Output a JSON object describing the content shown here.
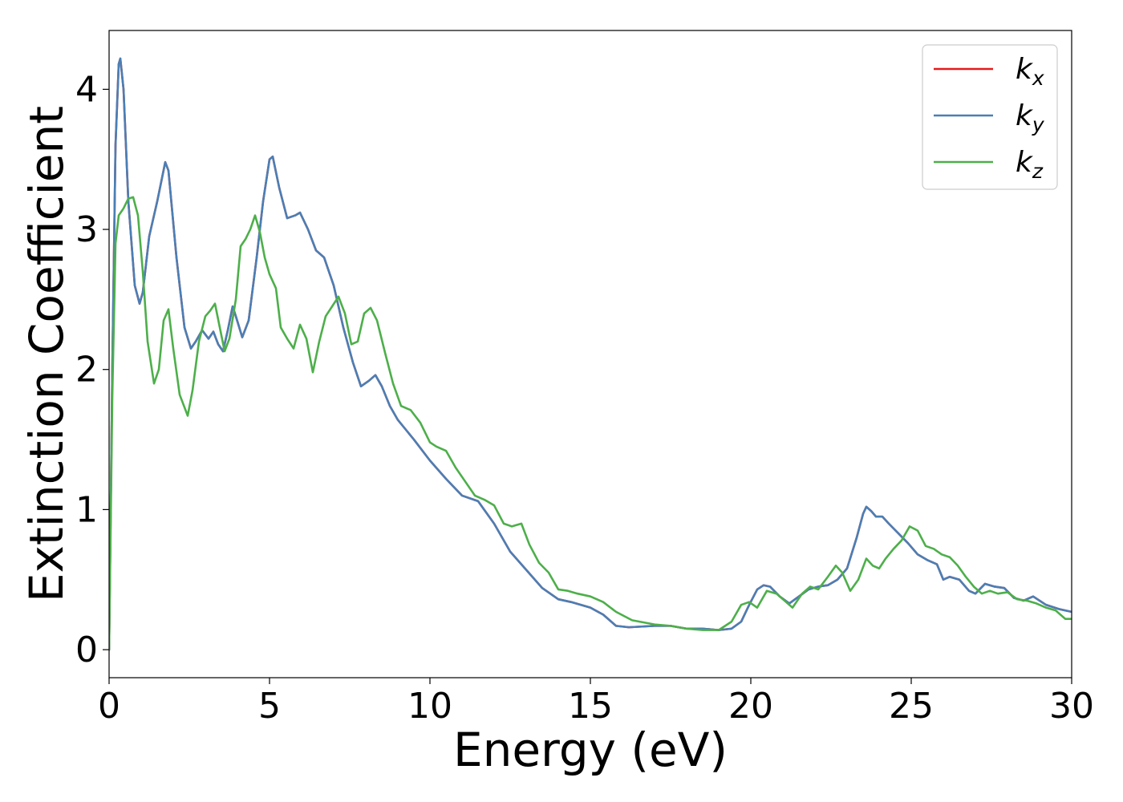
{
  "chart_data": {
    "type": "line",
    "xlabel": "Energy (eV)",
    "ylabel": "Extinction Coefficient",
    "xlim": [
      0,
      30
    ],
    "ylim": [
      -0.2,
      4.42
    ],
    "xticks": [
      "0",
      "5",
      "10",
      "15",
      "20",
      "25",
      "30"
    ],
    "yticks": [
      "0",
      "1",
      "2",
      "3",
      "4"
    ],
    "grid": false,
    "legend_position": "top-right",
    "series": [
      {
        "name": "k_x",
        "label_main": "k",
        "label_sub": "x",
        "color": "#e41a1c",
        "x": [
          0.0,
          0.1,
          0.2,
          0.3,
          0.35,
          0.45,
          0.6,
          0.8,
          0.95,
          1.05,
          1.25,
          1.5,
          1.75,
          1.85,
          2.1,
          2.35,
          2.55,
          2.7,
          2.9,
          3.1,
          3.25,
          3.4,
          3.55,
          3.7,
          3.85,
          3.95,
          4.15,
          4.35,
          4.6,
          4.8,
          5.0,
          5.1,
          5.3,
          5.55,
          5.8,
          5.95,
          6.2,
          6.45,
          6.7,
          7.0,
          7.3,
          7.6,
          7.85,
          8.1,
          8.3,
          8.5,
          8.75,
          9.0,
          9.5,
          10.0,
          10.5,
          11.0,
          11.5,
          12.0,
          12.5,
          13.0,
          13.5,
          14.0,
          14.4,
          14.7,
          15.0,
          15.4,
          15.8,
          16.2,
          17.0,
          17.5,
          18.0,
          18.5,
          19.0,
          19.4,
          19.7,
          19.95,
          20.2,
          20.4,
          20.6,
          20.9,
          21.2,
          21.5,
          21.8,
          22.1,
          22.4,
          22.7,
          23.0,
          23.3,
          23.5,
          23.6,
          23.75,
          23.9,
          24.1,
          24.3,
          24.6,
          24.9,
          25.2,
          25.5,
          25.8,
          26.0,
          26.2,
          26.5,
          26.8,
          27.0,
          27.3,
          27.6,
          27.9,
          28.2,
          28.5,
          28.8,
          29.2,
          29.6,
          30.0
        ],
        "y": [
          0.0,
          2.0,
          3.6,
          4.18,
          4.22,
          4.0,
          3.2,
          2.6,
          2.47,
          2.55,
          2.95,
          3.2,
          3.48,
          3.42,
          2.8,
          2.3,
          2.15,
          2.2,
          2.28,
          2.22,
          2.27,
          2.18,
          2.13,
          2.28,
          2.45,
          2.38,
          2.23,
          2.35,
          2.8,
          3.2,
          3.5,
          3.52,
          3.3,
          3.08,
          3.1,
          3.12,
          3.0,
          2.85,
          2.8,
          2.6,
          2.3,
          2.05,
          1.88,
          1.92,
          1.96,
          1.88,
          1.74,
          1.64,
          1.5,
          1.35,
          1.22,
          1.1,
          1.06,
          0.9,
          0.7,
          0.57,
          0.44,
          0.36,
          0.34,
          0.32,
          0.3,
          0.25,
          0.17,
          0.16,
          0.17,
          0.17,
          0.15,
          0.15,
          0.14,
          0.15,
          0.2,
          0.32,
          0.43,
          0.46,
          0.45,
          0.38,
          0.33,
          0.38,
          0.43,
          0.45,
          0.46,
          0.5,
          0.58,
          0.8,
          0.97,
          1.02,
          0.99,
          0.95,
          0.95,
          0.9,
          0.83,
          0.76,
          0.68,
          0.64,
          0.61,
          0.5,
          0.52,
          0.5,
          0.42,
          0.4,
          0.47,
          0.45,
          0.44,
          0.37,
          0.35,
          0.38,
          0.32,
          0.29,
          0.27
        ]
      },
      {
        "name": "k_y",
        "label_main": "k",
        "label_sub": "y",
        "color": "#4a7fb5",
        "x": [
          0.0,
          0.1,
          0.2,
          0.3,
          0.35,
          0.45,
          0.6,
          0.8,
          0.95,
          1.05,
          1.25,
          1.5,
          1.75,
          1.85,
          2.1,
          2.35,
          2.55,
          2.7,
          2.9,
          3.1,
          3.25,
          3.4,
          3.55,
          3.7,
          3.85,
          3.95,
          4.15,
          4.35,
          4.6,
          4.8,
          5.0,
          5.1,
          5.3,
          5.55,
          5.8,
          5.95,
          6.2,
          6.45,
          6.7,
          7.0,
          7.3,
          7.6,
          7.85,
          8.1,
          8.3,
          8.5,
          8.75,
          9.0,
          9.5,
          10.0,
          10.5,
          11.0,
          11.5,
          12.0,
          12.5,
          13.0,
          13.5,
          14.0,
          14.4,
          14.7,
          15.0,
          15.4,
          15.8,
          16.2,
          17.0,
          17.5,
          18.0,
          18.5,
          19.0,
          19.4,
          19.7,
          19.95,
          20.2,
          20.4,
          20.6,
          20.9,
          21.2,
          21.5,
          21.8,
          22.1,
          22.4,
          22.7,
          23.0,
          23.3,
          23.5,
          23.6,
          23.75,
          23.9,
          24.1,
          24.3,
          24.6,
          24.9,
          25.2,
          25.5,
          25.8,
          26.0,
          26.2,
          26.5,
          26.8,
          27.0,
          27.3,
          27.6,
          27.9,
          28.2,
          28.5,
          28.8,
          29.2,
          29.6,
          30.0
        ],
        "y": [
          0.0,
          2.0,
          3.6,
          4.18,
          4.22,
          4.0,
          3.2,
          2.6,
          2.47,
          2.55,
          2.95,
          3.2,
          3.48,
          3.42,
          2.8,
          2.3,
          2.15,
          2.2,
          2.28,
          2.22,
          2.27,
          2.18,
          2.13,
          2.28,
          2.45,
          2.38,
          2.23,
          2.35,
          2.8,
          3.2,
          3.5,
          3.52,
          3.3,
          3.08,
          3.1,
          3.12,
          3.0,
          2.85,
          2.8,
          2.6,
          2.3,
          2.05,
          1.88,
          1.92,
          1.96,
          1.88,
          1.74,
          1.64,
          1.5,
          1.35,
          1.22,
          1.1,
          1.06,
          0.9,
          0.7,
          0.57,
          0.44,
          0.36,
          0.34,
          0.32,
          0.3,
          0.25,
          0.17,
          0.16,
          0.17,
          0.17,
          0.15,
          0.15,
          0.14,
          0.15,
          0.2,
          0.32,
          0.43,
          0.46,
          0.45,
          0.38,
          0.33,
          0.38,
          0.43,
          0.45,
          0.46,
          0.5,
          0.58,
          0.8,
          0.97,
          1.02,
          0.99,
          0.95,
          0.95,
          0.9,
          0.83,
          0.76,
          0.68,
          0.64,
          0.61,
          0.5,
          0.52,
          0.5,
          0.42,
          0.4,
          0.47,
          0.45,
          0.44,
          0.37,
          0.35,
          0.38,
          0.32,
          0.29,
          0.27
        ]
      },
      {
        "name": "k_z",
        "label_main": "k",
        "label_sub": "z",
        "color": "#4daf4a",
        "x": [
          0.0,
          0.1,
          0.2,
          0.3,
          0.45,
          0.6,
          0.75,
          0.9,
          1.05,
          1.2,
          1.4,
          1.55,
          1.7,
          1.85,
          2.0,
          2.2,
          2.45,
          2.6,
          2.8,
          3.0,
          3.15,
          3.3,
          3.45,
          3.6,
          3.75,
          3.95,
          4.1,
          4.25,
          4.4,
          4.55,
          4.7,
          4.85,
          5.0,
          5.2,
          5.35,
          5.55,
          5.75,
          5.95,
          6.15,
          6.35,
          6.55,
          6.75,
          6.95,
          7.15,
          7.35,
          7.55,
          7.75,
          7.95,
          8.15,
          8.35,
          8.6,
          8.85,
          9.1,
          9.4,
          9.7,
          10.0,
          10.2,
          10.5,
          10.8,
          11.1,
          11.4,
          11.7,
          12.0,
          12.3,
          12.55,
          12.85,
          13.1,
          13.4,
          13.7,
          14.0,
          14.3,
          14.6,
          15.0,
          15.4,
          15.8,
          16.3,
          17.0,
          17.5,
          18.0,
          18.5,
          19.0,
          19.4,
          19.7,
          19.95,
          20.2,
          20.5,
          20.8,
          21.1,
          21.3,
          21.6,
          21.85,
          22.1,
          22.4,
          22.65,
          22.85,
          23.1,
          23.35,
          23.6,
          23.8,
          24.0,
          24.2,
          24.45,
          24.7,
          24.95,
          25.2,
          25.45,
          25.7,
          25.95,
          26.2,
          26.45,
          26.7,
          26.95,
          27.2,
          27.45,
          27.7,
          28.0,
          28.3,
          28.6,
          28.9,
          29.2,
          29.5,
          29.8,
          30.0
        ],
        "y": [
          0.0,
          1.8,
          2.9,
          3.1,
          3.15,
          3.22,
          3.23,
          3.1,
          2.7,
          2.2,
          1.9,
          2.0,
          2.35,
          2.43,
          2.15,
          1.82,
          1.67,
          1.85,
          2.2,
          2.38,
          2.42,
          2.47,
          2.3,
          2.13,
          2.22,
          2.5,
          2.88,
          2.93,
          3.0,
          3.1,
          2.98,
          2.8,
          2.68,
          2.58,
          2.3,
          2.22,
          2.15,
          2.32,
          2.22,
          1.98,
          2.2,
          2.38,
          2.45,
          2.52,
          2.4,
          2.18,
          2.2,
          2.4,
          2.44,
          2.35,
          2.12,
          1.9,
          1.74,
          1.71,
          1.62,
          1.48,
          1.45,
          1.42,
          1.3,
          1.2,
          1.1,
          1.07,
          1.03,
          0.9,
          0.88,
          0.9,
          0.75,
          0.62,
          0.55,
          0.43,
          0.42,
          0.4,
          0.38,
          0.34,
          0.27,
          0.21,
          0.18,
          0.17,
          0.15,
          0.14,
          0.14,
          0.2,
          0.32,
          0.34,
          0.3,
          0.42,
          0.4,
          0.34,
          0.3,
          0.4,
          0.45,
          0.43,
          0.52,
          0.6,
          0.55,
          0.42,
          0.5,
          0.65,
          0.6,
          0.58,
          0.65,
          0.72,
          0.78,
          0.88,
          0.85,
          0.74,
          0.72,
          0.68,
          0.66,
          0.6,
          0.52,
          0.45,
          0.4,
          0.42,
          0.4,
          0.41,
          0.36,
          0.35,
          0.33,
          0.3,
          0.28,
          0.22,
          0.22
        ]
      }
    ]
  }
}
